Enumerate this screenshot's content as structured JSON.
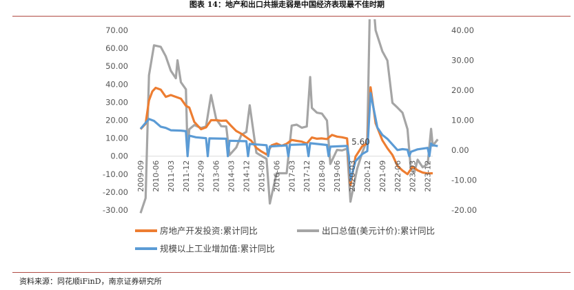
{
  "figure": {
    "title": "图表 14：地产和出口共振走弱是中国经济表现最不佳时期",
    "source": "资料来源：同花顺iFinD，南京证券研究所"
  },
  "chart_data": {
    "type": "line",
    "title": "",
    "x_ticks": [
      "2009-09",
      "2010-06",
      "2011-03",
      "2011-12",
      "2012-09",
      "2013-06",
      "2014-03",
      "2014-12",
      "2015-09",
      "2016-06",
      "2017-03",
      "2017-12",
      "2018-09",
      "2019-06",
      "2020-03",
      "2020-12",
      "2021-09",
      "2022-06",
      "2023-03",
      "2023-12"
    ],
    "x_range": [
      "2009-09",
      "2024-03"
    ],
    "y_left": {
      "ticks": [
        "70.00",
        "60.00",
        "50.00",
        "40.00",
        "30.00",
        "20.00",
        "10.00",
        "0.00",
        "-10.00",
        "-20.00",
        "-30.00"
      ],
      "range": [
        -30,
        70
      ]
    },
    "y_right": {
      "ticks": [
        "40.00",
        "30.00",
        "20.00",
        "10.00",
        "0.00",
        "-10.00",
        "-20.00"
      ],
      "range": [
        -20,
        40
      ]
    },
    "annotations": [
      {
        "text": "5.60",
        "x": "2020-01",
        "y": 5.6
      }
    ],
    "series": [
      {
        "name": "房地产开发投资:累计同比",
        "axis": "left",
        "color": "#ed7d31",
        "points": [
          [
            "2009-09",
            15
          ],
          [
            "2009-12",
            18
          ],
          [
            "2010-02",
            31
          ],
          [
            "2010-04",
            36
          ],
          [
            "2010-06",
            38
          ],
          [
            "2010-09",
            37
          ],
          [
            "2010-12",
            33
          ],
          [
            "2011-03",
            34
          ],
          [
            "2011-06",
            33
          ],
          [
            "2011-09",
            32
          ],
          [
            "2011-12",
            28
          ],
          [
            "2012-02",
            27
          ],
          [
            "2012-05",
            19
          ],
          [
            "2012-09",
            15
          ],
          [
            "2012-12",
            16
          ],
          [
            "2013-03",
            20
          ],
          [
            "2013-06",
            20
          ],
          [
            "2013-09",
            19.7
          ],
          [
            "2013-12",
            19.8
          ],
          [
            "2014-03",
            16.8
          ],
          [
            "2014-06",
            14
          ],
          [
            "2014-09",
            12.5
          ],
          [
            "2014-12",
            10.5
          ],
          [
            "2015-03",
            8.5
          ],
          [
            "2015-06",
            4.6
          ],
          [
            "2015-09",
            2.6
          ],
          [
            "2015-12",
            1
          ],
          [
            "2016-03",
            6
          ],
          [
            "2016-06",
            7
          ],
          [
            "2016-09",
            5.8
          ],
          [
            "2016-12",
            6.9
          ],
          [
            "2017-03",
            9
          ],
          [
            "2017-06",
            8.5
          ],
          [
            "2017-09",
            8.1
          ],
          [
            "2017-12",
            7
          ],
          [
            "2018-03",
            10.4
          ],
          [
            "2018-06",
            9.7
          ],
          [
            "2018-09",
            9.9
          ],
          [
            "2018-12",
            9.5
          ],
          [
            "2019-03",
            11.8
          ],
          [
            "2019-06",
            10.9
          ],
          [
            "2019-09",
            10.5
          ],
          [
            "2019-12",
            9.9
          ],
          [
            "2020-02",
            -16.3
          ],
          [
            "2020-05",
            -0.3
          ],
          [
            "2020-09",
            5.6
          ],
          [
            "2020-12",
            7
          ],
          [
            "2021-02",
            38.3
          ],
          [
            "2021-05",
            18.3
          ],
          [
            "2021-09",
            8.8
          ],
          [
            "2021-12",
            4.4
          ],
          [
            "2022-03",
            0.7
          ],
          [
            "2022-06",
            -5.4
          ],
          [
            "2022-09",
            -8
          ],
          [
            "2022-12",
            -10
          ],
          [
            "2023-03",
            -5.8
          ],
          [
            "2023-06",
            -7.9
          ],
          [
            "2023-09",
            -9.1
          ],
          [
            "2023-12",
            -9.6
          ],
          [
            "2024-03",
            -9.5
          ]
        ]
      },
      {
        "name": "出口总值(美元计价):累计同比",
        "axis": "right",
        "color": "#a5a5a5",
        "points": [
          [
            "2009-09",
            -21
          ],
          [
            "2009-12",
            -16
          ],
          [
            "2010-02",
            25
          ],
          [
            "2010-05",
            35
          ],
          [
            "2010-09",
            34.5
          ],
          [
            "2010-12",
            31.3
          ],
          [
            "2011-03",
            26.5
          ],
          [
            "2011-06",
            24
          ],
          [
            "2011-07",
            30
          ],
          [
            "2011-09",
            22.7
          ],
          [
            "2011-12",
            20.3
          ],
          [
            "2012-01",
            -0.5
          ],
          [
            "2012-02",
            7
          ],
          [
            "2012-05",
            8.4
          ],
          [
            "2012-09",
            7.4
          ],
          [
            "2012-12",
            7.9
          ],
          [
            "2013-03",
            18.4
          ],
          [
            "2013-06",
            10.4
          ],
          [
            "2013-09",
            8
          ],
          [
            "2013-12",
            7.9
          ],
          [
            "2014-02",
            -1.6
          ],
          [
            "2014-06",
            0.9
          ],
          [
            "2014-09",
            5.1
          ],
          [
            "2014-12",
            6.1
          ],
          [
            "2015-02",
            15
          ],
          [
            "2015-06",
            -0.9
          ],
          [
            "2015-09",
            -1.9
          ],
          [
            "2015-12",
            -2.9
          ],
          [
            "2016-02",
            -17.8
          ],
          [
            "2016-06",
            -7.7
          ],
          [
            "2016-12",
            -7.7
          ],
          [
            "2017-03",
            8.2
          ],
          [
            "2017-06",
            8.5
          ],
          [
            "2017-09",
            7.5
          ],
          [
            "2017-12",
            7.9
          ],
          [
            "2018-02",
            24.4
          ],
          [
            "2018-03",
            14.1
          ],
          [
            "2018-06",
            12.5
          ],
          [
            "2018-09",
            12.2
          ],
          [
            "2018-12",
            9.9
          ],
          [
            "2019-02",
            -4.6
          ],
          [
            "2019-06",
            0.1
          ],
          [
            "2019-09",
            -0.1
          ],
          [
            "2019-12",
            0.5
          ],
          [
            "2020-02",
            -17.2
          ],
          [
            "2020-06",
            -6.2
          ],
          [
            "2020-09",
            -0.8
          ],
          [
            "2020-12",
            3.6
          ],
          [
            "2021-02",
            60.6
          ],
          [
            "2021-05",
            40
          ],
          [
            "2021-09",
            33
          ],
          [
            "2021-12",
            29.9
          ],
          [
            "2022-03",
            15.8
          ],
          [
            "2022-06",
            14.2
          ],
          [
            "2022-09",
            12.5
          ],
          [
            "2022-12",
            7
          ],
          [
            "2023-02",
            -6.8
          ],
          [
            "2023-04",
            -7.5
          ],
          [
            "2023-06",
            -3.2
          ],
          [
            "2023-09",
            -5.7
          ],
          [
            "2023-12",
            -4.6
          ],
          [
            "2024-02",
            7.1
          ],
          [
            "2024-03",
            1.5
          ],
          [
            "2024-06",
            3.6
          ]
        ]
      },
      {
        "name": "规模以上工业增加值:累计同比",
        "axis": "left",
        "color": "#5b9bd5",
        "points": [
          [
            "2009-09",
            15.2
          ],
          [
            "2009-12",
            18.5
          ],
          [
            "2010-02",
            20.7
          ],
          [
            "2010-05",
            19.6
          ],
          [
            "2010-09",
            16.4
          ],
          [
            "2010-12",
            15.7
          ],
          [
            "2011-03",
            14.4
          ],
          [
            "2011-06",
            14.3
          ],
          [
            "2011-09",
            14.2
          ],
          [
            "2011-12",
            13.9
          ],
          [
            "2012-01",
            0
          ],
          [
            "2012-02",
            11.4
          ],
          [
            "2012-06",
            10.5
          ],
          [
            "2012-12",
            10
          ],
          [
            "2013-01",
            0
          ],
          [
            "2013-02",
            9.9
          ],
          [
            "2013-12",
            9.7
          ],
          [
            "2014-01",
            0
          ],
          [
            "2014-02",
            8.6
          ],
          [
            "2014-12",
            8.3
          ],
          [
            "2015-01",
            0
          ],
          [
            "2015-02",
            6.8
          ],
          [
            "2015-12",
            6.1
          ],
          [
            "2016-01",
            0
          ],
          [
            "2016-02",
            5.4
          ],
          [
            "2016-12",
            6
          ],
          [
            "2017-01",
            0
          ],
          [
            "2017-02",
            6.3
          ],
          [
            "2017-12",
            6.6
          ],
          [
            "2018-01",
            0
          ],
          [
            "2018-02",
            7.2
          ],
          [
            "2018-12",
            6.2
          ],
          [
            "2019-01",
            0
          ],
          [
            "2019-02",
            5.3
          ],
          [
            "2019-12",
            5.7
          ],
          [
            "2020-01",
            0
          ],
          [
            "2020-02",
            -13.5
          ],
          [
            "2020-05",
            -2.8
          ],
          [
            "2020-09",
            1.2
          ],
          [
            "2020-12",
            2.8
          ],
          [
            "2021-02",
            35.1
          ],
          [
            "2021-06",
            15.9
          ],
          [
            "2021-09",
            11.8
          ],
          [
            "2021-12",
            9.6
          ],
          [
            "2022-02",
            7.5
          ],
          [
            "2022-06",
            3.4
          ],
          [
            "2022-09",
            3.9
          ],
          [
            "2022-12",
            3.6
          ],
          [
            "2023-01",
            0
          ],
          [
            "2023-02",
            2.4
          ],
          [
            "2023-06",
            3.8
          ],
          [
            "2023-12",
            4.6
          ],
          [
            "2024-01",
            0
          ],
          [
            "2024-02",
            7.0
          ],
          [
            "2024-03",
            6.1
          ],
          [
            "2024-06",
            5.6
          ]
        ]
      }
    ],
    "legend_placement": "bottom",
    "grid": false
  }
}
